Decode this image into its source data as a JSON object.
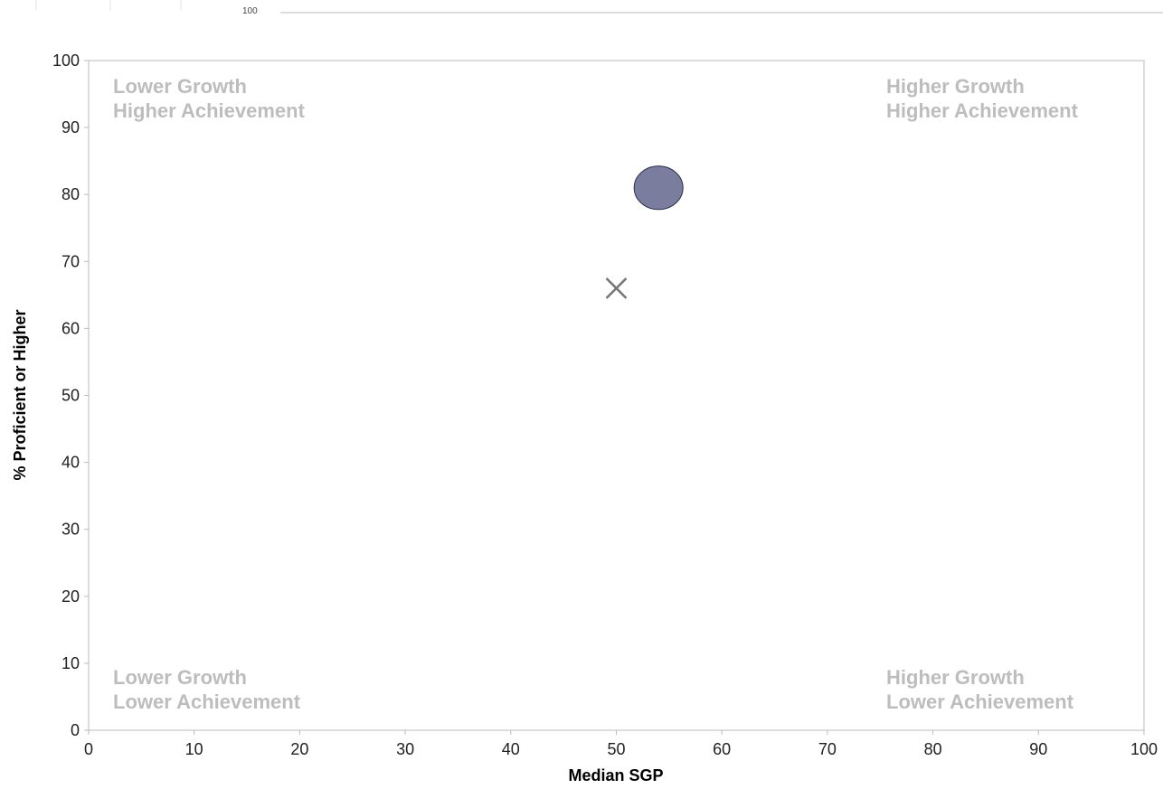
{
  "chart_data": {
    "type": "scatter",
    "title": "",
    "xlabel": "Median SGP",
    "ylabel": "% Proficient or Higher",
    "xlim": [
      0,
      100
    ],
    "ylim": [
      0,
      100
    ],
    "x_ticks": [
      0,
      10,
      20,
      30,
      40,
      50,
      60,
      70,
      80,
      90,
      100
    ],
    "y_ticks": [
      0,
      10,
      20,
      30,
      40,
      50,
      60,
      70,
      80,
      90,
      100
    ],
    "grid": false,
    "quadrant_labels": {
      "top_left": [
        "Lower Growth",
        "Higher Achievement"
      ],
      "top_right": [
        "Higher Growth",
        "Higher Achievement"
      ],
      "bottom_left": [
        "Lower Growth",
        "Lower Achievement"
      ],
      "bottom_right": [
        "Higher Growth",
        "Lower Achievement"
      ]
    },
    "series": [
      {
        "marker": "circle",
        "color": "#7b7d9e",
        "points": [
          {
            "x": 54,
            "y": 81
          }
        ]
      },
      {
        "marker": "x",
        "color": "#777777",
        "points": [
          {
            "x": 50,
            "y": 66
          }
        ]
      }
    ],
    "top_clipped_label": "100",
    "label_color": "#bdbdbd",
    "axis_color": "#bbbbbb"
  }
}
